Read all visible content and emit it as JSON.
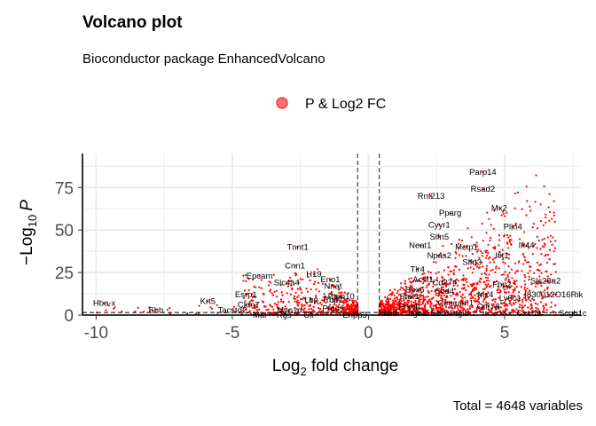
{
  "chart_data": {
    "type": "scatter",
    "title": "Volcano plot",
    "subtitle": "Bioconductor package EnhancedVolcano",
    "xlabel_main": "Log",
    "xlabel_sub": "2",
    "xlabel_rest": " fold change",
    "ylabel_prefix": "−Log",
    "ylabel_sub": "10",
    "ylabel_var": "P",
    "caption": "Total = 4648 variables",
    "legend": [
      {
        "label": "P & Log2 FC",
        "color": "#ff0000"
      }
    ],
    "legend_position": "top",
    "xlim": [
      -10.5,
      7.8
    ],
    "ylim": [
      0,
      95
    ],
    "x_ticks": [
      -10,
      -5,
      0,
      5
    ],
    "y_ticks": [
      0,
      25,
      50,
      75
    ],
    "fc_cutoff": 0.4,
    "p_cutoff_y": 1.5,
    "grid": true,
    "point_color": "#ff0000",
    "labels": [
      {
        "text": "Parp14",
        "x": 4.2,
        "y": 84
      },
      {
        "text": "Rsad2",
        "x": 4.2,
        "y": 74
      },
      {
        "text": "Rnf213",
        "x": 2.3,
        "y": 70
      },
      {
        "text": "Mx2",
        "x": 4.8,
        "y": 63
      },
      {
        "text": "Pparg",
        "x": 3.0,
        "y": 60
      },
      {
        "text": "Cyyr1",
        "x": 2.6,
        "y": 53
      },
      {
        "text": "Plin4",
        "x": 5.3,
        "y": 52
      },
      {
        "text": "Slfn5",
        "x": 2.6,
        "y": 46
      },
      {
        "text": "Neat1",
        "x": 1.9,
        "y": 41
      },
      {
        "text": "Mctp1",
        "x": 3.6,
        "y": 40
      },
      {
        "text": "Ifi44",
        "x": 5.8,
        "y": 41
      },
      {
        "text": "Npas2",
        "x": 2.6,
        "y": 35
      },
      {
        "text": "Ifit1",
        "x": 4.9,
        "y": 35
      },
      {
        "text": "Tnnt1",
        "x": -2.6,
        "y": 40
      },
      {
        "text": "Cnn1",
        "x": -2.7,
        "y": 29
      },
      {
        "text": "H19",
        "x": -2.0,
        "y": 24
      },
      {
        "text": "Epcam",
        "x": -4.0,
        "y": 23
      },
      {
        "text": "Eno1",
        "x": -1.4,
        "y": 21
      },
      {
        "text": "Slc4a4",
        "x": -3.0,
        "y": 19
      },
      {
        "text": "Nnat",
        "x": -1.3,
        "y": 17
      },
      {
        "text": "Esrp1",
        "x": -4.5,
        "y": 12
      },
      {
        "text": "Lbp",
        "x": -2.1,
        "y": 9
      },
      {
        "text": "Rbp1",
        "x": -1.3,
        "y": 9
      },
      {
        "text": "Ptpn10",
        "x": -1.0,
        "y": 11
      },
      {
        "text": "Cldn7",
        "x": -4.4,
        "y": 6
      },
      {
        "text": "Tacstd2",
        "x": -5.0,
        "y": 3
      },
      {
        "text": "Krt5",
        "x": -5.9,
        "y": 8
      },
      {
        "text": "Hba-x",
        "x": -9.7,
        "y": 7
      },
      {
        "text": "Shh",
        "x": -7.8,
        "y": 3
      },
      {
        "text": "Myo1d",
        "x": -2.9,
        "y": 3
      },
      {
        "text": "Ptgds",
        "x": -1.3,
        "y": 4
      },
      {
        "text": "Mal",
        "x": -4.0,
        "y": 0
      },
      {
        "text": "Rgs",
        "x": -3.1,
        "y": 0
      },
      {
        "text": "Cfi",
        "x": -2.2,
        "y": 0
      },
      {
        "text": "Enpp3",
        "x": -0.5,
        "y": 0
      },
      {
        "text": "Mitf",
        "x": 0.8,
        "y": 1
      },
      {
        "text": "Itgb2",
        "x": 1.8,
        "y": 1
      },
      {
        "text": "Ebf2",
        "x": 2.6,
        "y": 1
      },
      {
        "text": "Ptgir",
        "x": 3.3,
        "y": 1
      },
      {
        "text": "Prkcb",
        "x": 1.5,
        "y": 5
      },
      {
        "text": "Stat1",
        "x": 1.5,
        "y": 11
      },
      {
        "text": "Sox6",
        "x": 1.7,
        "y": 15
      },
      {
        "text": "Acsl1",
        "x": 2.0,
        "y": 21
      },
      {
        "text": "Slfn3",
        "x": 3.8,
        "y": 31
      },
      {
        "text": "Tlr4",
        "x": 1.8,
        "y": 27
      },
      {
        "text": "Cd274",
        "x": 2.8,
        "y": 19
      },
      {
        "text": "Scd4",
        "x": 2.8,
        "y": 14
      },
      {
        "text": "Mx4",
        "x": 4.3,
        "y": 12
      },
      {
        "text": "Ceacam1",
        "x": 3.2,
        "y": 7
      },
      {
        "text": "Olfr78",
        "x": 4.4,
        "y": 5
      },
      {
        "text": "Fbp2",
        "x": 4.9,
        "y": 18
      },
      {
        "text": "Ly6c1",
        "x": 5.2,
        "y": 10
      },
      {
        "text": "Slc28a2",
        "x": 6.5,
        "y": 20
      },
      {
        "text": "I830012O16Rik",
        "x": 6.8,
        "y": 12
      },
      {
        "text": "Cxcl11",
        "x": 5.9,
        "y": 1
      },
      {
        "text": "Scgb1c",
        "x": 7.5,
        "y": 1
      }
    ]
  }
}
